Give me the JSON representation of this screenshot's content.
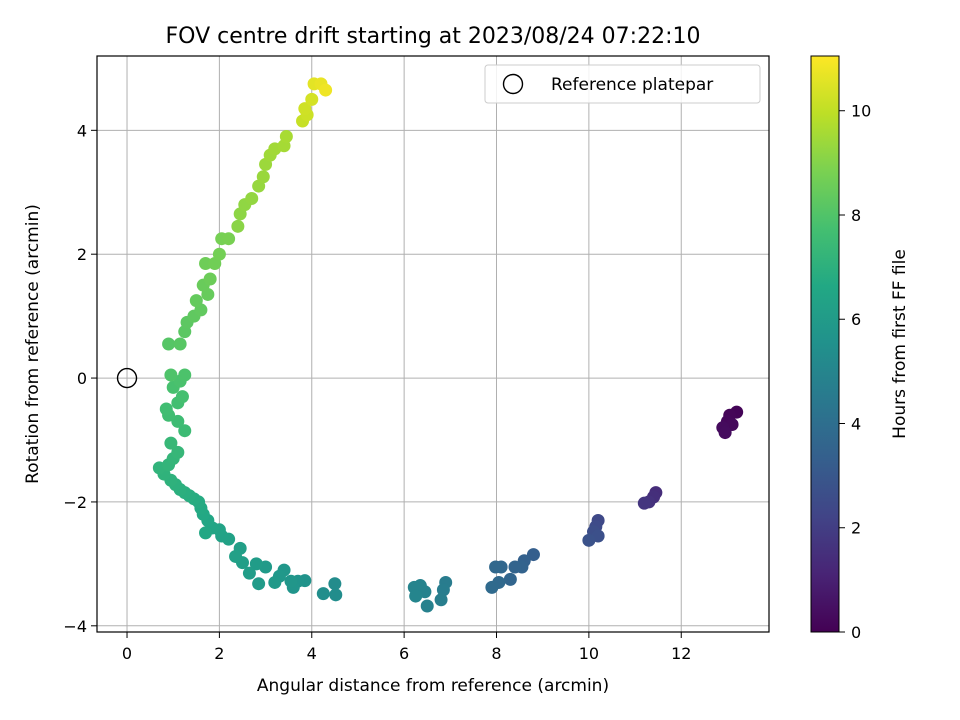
{
  "chart_data": {
    "type": "scatter",
    "title": "FOV centre drift starting at 2023/08/24 07:22:10",
    "xlabel": "Angular distance from reference (arcmin)",
    "ylabel": "Rotation from reference (arcmin)",
    "xlim": [
      -0.65,
      13.9
    ],
    "ylim": [
      -4.1,
      5.2
    ],
    "xticks": [
      0,
      2,
      4,
      6,
      8,
      10,
      12
    ],
    "yticks": [
      -4,
      -2,
      0,
      2,
      4
    ],
    "grid": true,
    "colormap": "viridis",
    "colorbar": {
      "label": "Hours from first FF file",
      "range": [
        0,
        11.05
      ],
      "ticks": [
        0,
        2,
        4,
        6,
        8,
        10
      ]
    },
    "legend": {
      "placement": "top-right",
      "entries": [
        {
          "label": "Reference platepar",
          "marker": "open-circle",
          "color": "#000000"
        }
      ]
    },
    "reference_point": {
      "x": 0,
      "y": 0
    },
    "series": [
      {
        "points": [
          [
            13.2,
            -0.55,
            0.1
          ],
          [
            13.05,
            -0.6,
            0.15
          ],
          [
            13.0,
            -0.7,
            0.2
          ],
          [
            13.1,
            -0.75,
            0.25
          ],
          [
            12.9,
            -0.8,
            0.3
          ],
          [
            12.95,
            -0.88,
            0.35
          ],
          [
            11.45,
            -1.85,
            1.4
          ],
          [
            11.4,
            -1.92,
            1.5
          ],
          [
            11.3,
            -2.0,
            1.6
          ],
          [
            11.2,
            -2.02,
            1.7
          ],
          [
            10.2,
            -2.3,
            2.4
          ],
          [
            10.15,
            -2.4,
            2.5
          ],
          [
            10.1,
            -2.48,
            2.6
          ],
          [
            10.2,
            -2.55,
            2.7
          ],
          [
            10.0,
            -2.62,
            2.8
          ],
          [
            8.8,
            -2.85,
            3.3
          ],
          [
            8.6,
            -2.95,
            3.4
          ],
          [
            8.55,
            -3.05,
            3.5
          ],
          [
            8.4,
            -3.05,
            3.55
          ],
          [
            8.3,
            -3.25,
            3.6
          ],
          [
            8.1,
            -3.05,
            3.65
          ],
          [
            7.98,
            -3.05,
            3.7
          ],
          [
            8.05,
            -3.3,
            3.75
          ],
          [
            7.9,
            -3.38,
            3.8
          ],
          [
            6.9,
            -3.3,
            4.6
          ],
          [
            6.85,
            -3.42,
            4.65
          ],
          [
            6.8,
            -3.58,
            4.7
          ],
          [
            6.5,
            -3.68,
            4.8
          ],
          [
            6.45,
            -3.45,
            4.85
          ],
          [
            6.35,
            -3.35,
            4.9
          ],
          [
            6.22,
            -3.38,
            4.95
          ],
          [
            6.25,
            -3.52,
            5.0
          ],
          [
            4.5,
            -3.32,
            5.3
          ],
          [
            4.52,
            -3.5,
            5.35
          ],
          [
            4.25,
            -3.48,
            5.4
          ],
          [
            3.85,
            -3.27,
            5.6
          ],
          [
            3.7,
            -3.28,
            5.65
          ],
          [
            3.6,
            -3.38,
            5.7
          ],
          [
            3.55,
            -3.28,
            5.75
          ],
          [
            3.4,
            -3.1,
            5.8
          ],
          [
            3.3,
            -3.2,
            5.85
          ],
          [
            3.2,
            -3.3,
            5.9
          ],
          [
            3.0,
            -3.05,
            5.95
          ],
          [
            2.85,
            -3.32,
            6.0
          ],
          [
            2.8,
            -3.0,
            6.05
          ],
          [
            2.65,
            -3.15,
            6.1
          ],
          [
            2.5,
            -2.98,
            6.15
          ],
          [
            2.45,
            -2.75,
            6.2
          ],
          [
            2.35,
            -2.88,
            6.25
          ],
          [
            2.2,
            -2.6,
            6.3
          ],
          [
            2.05,
            -2.55,
            6.35
          ],
          [
            2.0,
            -2.45,
            6.4
          ],
          [
            1.85,
            -2.42,
            6.5
          ],
          [
            1.75,
            -2.3,
            6.55
          ],
          [
            1.7,
            -2.5,
            6.6
          ],
          [
            1.65,
            -2.2,
            6.65
          ],
          [
            1.6,
            -2.1,
            6.7
          ],
          [
            1.55,
            -2.0,
            6.75
          ],
          [
            1.45,
            -1.95,
            6.8
          ],
          [
            1.35,
            -1.9,
            6.85
          ],
          [
            1.25,
            -1.85,
            6.9
          ],
          [
            1.15,
            -1.8,
            6.95
          ],
          [
            1.05,
            -1.72,
            7.0
          ],
          [
            0.95,
            -1.65,
            7.05
          ],
          [
            0.8,
            -1.55,
            7.1
          ],
          [
            0.7,
            -1.45,
            7.15
          ],
          [
            0.9,
            -1.4,
            7.2
          ],
          [
            1.0,
            -1.3,
            7.25
          ],
          [
            1.1,
            -1.2,
            7.3
          ],
          [
            0.95,
            -1.05,
            7.35
          ],
          [
            1.25,
            -0.85,
            7.5
          ],
          [
            1.1,
            -0.7,
            7.55
          ],
          [
            0.9,
            -0.6,
            7.6
          ],
          [
            0.85,
            -0.5,
            7.65
          ],
          [
            1.1,
            -0.4,
            7.7
          ],
          [
            1.2,
            -0.3,
            7.75
          ],
          [
            1.0,
            -0.15,
            7.8
          ],
          [
            1.15,
            -0.05,
            7.85
          ],
          [
            1.25,
            0.05,
            7.9
          ],
          [
            0.95,
            0.05,
            7.95
          ],
          [
            0.9,
            0.55,
            8.1
          ],
          [
            1.15,
            0.55,
            8.15
          ],
          [
            1.25,
            0.75,
            8.2
          ],
          [
            1.3,
            0.9,
            8.25
          ],
          [
            1.45,
            1.0,
            8.3
          ],
          [
            1.6,
            1.1,
            8.35
          ],
          [
            1.5,
            1.25,
            8.4
          ],
          [
            1.75,
            1.35,
            8.45
          ],
          [
            1.65,
            1.5,
            8.5
          ],
          [
            1.8,
            1.6,
            8.55
          ],
          [
            1.7,
            1.85,
            8.6
          ],
          [
            1.9,
            1.85,
            8.65
          ],
          [
            2.0,
            2.0,
            8.7
          ],
          [
            2.05,
            2.25,
            8.75
          ],
          [
            2.2,
            2.25,
            8.8
          ],
          [
            2.4,
            2.45,
            9.1
          ],
          [
            2.45,
            2.65,
            9.15
          ],
          [
            2.55,
            2.8,
            9.2
          ],
          [
            2.7,
            2.9,
            9.25
          ],
          [
            2.85,
            3.1,
            9.3
          ],
          [
            2.95,
            3.25,
            9.35
          ],
          [
            3.0,
            3.45,
            9.4
          ],
          [
            3.1,
            3.6,
            9.45
          ],
          [
            3.2,
            3.7,
            9.5
          ],
          [
            3.4,
            3.75,
            9.55
          ],
          [
            3.45,
            3.9,
            9.6
          ],
          [
            3.8,
            4.15,
            10.1
          ],
          [
            3.9,
            4.25,
            10.2
          ],
          [
            3.85,
            4.35,
            10.25
          ],
          [
            4.0,
            4.5,
            10.35
          ],
          [
            4.05,
            4.75,
            10.6
          ],
          [
            4.2,
            4.75,
            10.7
          ],
          [
            4.3,
            4.65,
            10.8
          ]
        ]
      }
    ]
  }
}
